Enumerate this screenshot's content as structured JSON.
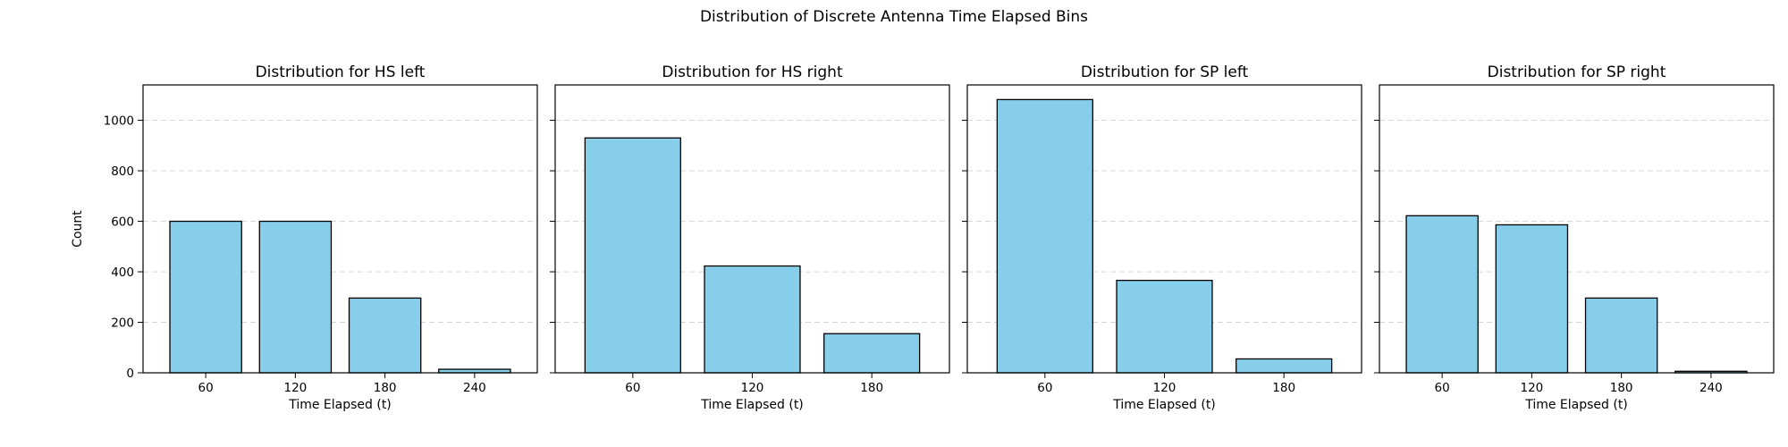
{
  "figure_title": "Distribution of Discrete Antenna Time Elapsed Bins",
  "bar_color": "#87CEEB",
  "bar_edge_color": "#000000",
  "chart_data": [
    {
      "type": "bar",
      "title": "Distribution for HS left",
      "xlabel": "Time Elapsed (t)",
      "ylabel": "Count",
      "categories": [
        "60",
        "120",
        "180",
        "240"
      ],
      "values": [
        600,
        600,
        296,
        14
      ],
      "ylim": [
        0,
        1140
      ],
      "yticks": [
        0,
        200,
        400,
        600,
        800,
        1000
      ],
      "grid": "y-dashed"
    },
    {
      "type": "bar",
      "title": "Distribution for HS right",
      "xlabel": "Time Elapsed (t)",
      "ylabel": "",
      "categories": [
        "60",
        "120",
        "180"
      ],
      "values": [
        930,
        423,
        155
      ],
      "ylim": [
        0,
        1140
      ],
      "yticks": [
        0,
        200,
        400,
        600,
        800,
        1000
      ],
      "grid": "y-dashed"
    },
    {
      "type": "bar",
      "title": "Distribution for SP left",
      "xlabel": "Time Elapsed (t)",
      "ylabel": "",
      "categories": [
        "60",
        "120",
        "180"
      ],
      "values": [
        1082,
        366,
        55
      ],
      "ylim": [
        0,
        1140
      ],
      "yticks": [
        0,
        200,
        400,
        600,
        800,
        1000
      ],
      "grid": "y-dashed"
    },
    {
      "type": "bar",
      "title": "Distribution for SP right",
      "xlabel": "Time Elapsed (t)",
      "ylabel": "",
      "categories": [
        "60",
        "120",
        "180",
        "240"
      ],
      "values": [
        622,
        586,
        296,
        6
      ],
      "ylim": [
        0,
        1140
      ],
      "yticks": [
        0,
        200,
        400,
        600,
        800,
        1000
      ],
      "grid": "y-dashed"
    }
  ]
}
